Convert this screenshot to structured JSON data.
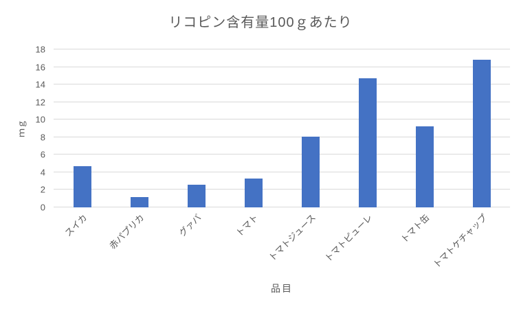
{
  "chart_data": {
    "type": "bar",
    "title": "リコピン含有量100ｇあたり",
    "xlabel": "品目",
    "ylabel": "ｍｇ",
    "categories": [
      "スイカ",
      "赤パプリカ",
      "グァバ",
      "トマト",
      "トマトジュース",
      "トマトピューレ",
      "トマト缶",
      "トマトケチャップ"
    ],
    "values": [
      4.7,
      1.2,
      2.6,
      3.3,
      8.1,
      14.7,
      9.2,
      16.8
    ],
    "ylim": [
      0,
      18
    ],
    "ytick_step": 2,
    "grid": true,
    "legend": "none",
    "bar_color": "#4472c4",
    "gridline_color": "#d9d9d9",
    "text_color": "#595959",
    "background_color": "#ffffff"
  }
}
